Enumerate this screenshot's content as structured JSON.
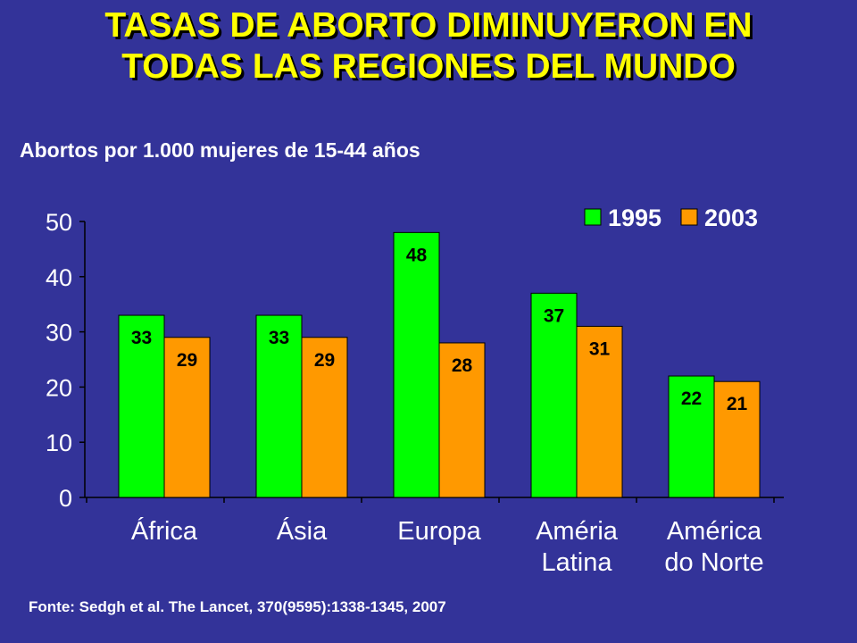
{
  "slide": {
    "title_line1": "TASAS DE ABORTO DIMINUYERON EN",
    "title_line2": "TODAS LAS REGIONES DEL MUNDO",
    "subtitle": "Abortos por 1.000 mujeres de 15-44 años",
    "source": "Fonte: Sedgh et al. The Lancet, 370(9595):1338-1345,  2007"
  },
  "colors": {
    "background": "#333399",
    "title": "#ffff00",
    "series_1995": "#00ff00",
    "series_2003": "#ff9900"
  },
  "chart_data": {
    "type": "bar",
    "categories": [
      [
        "África"
      ],
      [
        "Ásia"
      ],
      [
        "Europa"
      ],
      [
        "Améria",
        "Latina"
      ],
      [
        "América",
        "do Norte"
      ]
    ],
    "series": [
      {
        "name": "1995",
        "values": [
          33,
          33,
          48,
          37,
          22
        ]
      },
      {
        "name": "2003",
        "values": [
          29,
          29,
          28,
          31,
          21
        ]
      }
    ],
    "yticks": [
      0,
      10,
      20,
      30,
      40,
      50
    ],
    "ylim": [
      0,
      50
    ],
    "grid": false,
    "data_labels": true,
    "legend": "top-right"
  }
}
